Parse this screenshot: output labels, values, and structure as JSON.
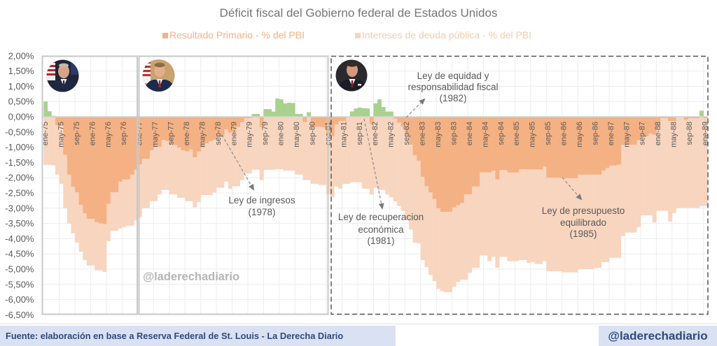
{
  "title": "Déficit fiscal del Gobierno federal de Estados Unidos",
  "legend": [
    {
      "label": "Resultado Primario - % del PBI",
      "color": "#F4B183"
    },
    {
      "label": "Intereses de deuda pública - % del PBI",
      "color": "#F6CBAE"
    }
  ],
  "chart_data": {
    "type": "bar",
    "stacked": true,
    "title": "Déficit fiscal del Gobierno federal de Estados Unidos",
    "frequency": "monthly",
    "x_start": "ene-75",
    "x_end": "ene-89",
    "x_tick_every": 4,
    "x_tick_labels": [
      "ene-75",
      "may-75",
      "sep-75",
      "ene-76",
      "may-76",
      "sep-76",
      "ene-77",
      "may-77",
      "sep-77",
      "ene-78",
      "may-78",
      "sep-78",
      "ene-79",
      "may-79",
      "sep-79",
      "ene-80",
      "may-80",
      "sep-80",
      "ene-81",
      "may-81",
      "sep-81",
      "ene-82",
      "may-82",
      "sep-82",
      "ene-83",
      "may-83",
      "sep-83",
      "ene-84",
      "may-84",
      "sep-84",
      "ene-85",
      "may-85",
      "sep-85",
      "ene-86",
      "may-86",
      "sep-86",
      "ene-87",
      "may-87",
      "sep-87",
      "ene-88",
      "may-88",
      "sep-88",
      "ene-89"
    ],
    "y_tick_labels": [
      "2,00%",
      "1,50%",
      "1,00%",
      "0,50%",
      "0,00%",
      "-0,50%",
      "-1,00%",
      "-1,50%",
      "-2,00%",
      "-2,50%",
      "-3,00%",
      "-3,50%",
      "-4,00%",
      "-4,50%",
      "-5,00%",
      "-5,50%",
      "-6,00%",
      "-6,50%"
    ],
    "ylim": [
      -6.5,
      2.0
    ],
    "y_step": 0.5,
    "xlabel": "",
    "ylabel": "",
    "grid": true,
    "legend_position": "top",
    "series": [
      {
        "name": "Resultado Primario - % del PBI",
        "color_negative": "#F4B183",
        "color_positive": "#A9D18E",
        "values": [
          0.5,
          0.18,
          0.03,
          -0.28,
          -0.28,
          -1.25,
          -1.9,
          -2.3,
          -2.48,
          -2.89,
          -3.17,
          -3.35,
          -3.35,
          -3.46,
          -3.5,
          -3.52,
          -2.86,
          -2.48,
          -2.48,
          -2.13,
          -2.06,
          -2.06,
          -1.9,
          -1.74,
          -1.56,
          -1.38,
          -1.38,
          -1.1,
          -0.99,
          -0.99,
          -0.76,
          -0.8,
          -0.92,
          -0.93,
          -1.01,
          -1.1,
          -1.14,
          -1.07,
          -1.33,
          -1.14,
          -1.0,
          -0.87,
          -0.8,
          -0.76,
          -0.62,
          -0.62,
          -0.41,
          -0.52,
          -0.55,
          -0.33,
          -0.18,
          -0.05,
          -0.05,
          0.09,
          0.09,
          -0.33,
          0.25,
          0.25,
          0.17,
          0.6,
          0.57,
          0.44,
          0.46,
          0.45,
          0.09,
          0.09,
          -0.18,
          0.15,
          -0.33,
          -0.33,
          -0.33,
          -0.35,
          -0.6,
          -0.64,
          -0.25,
          -0.14,
          -0.14,
          -0.02,
          0.17,
          0.27,
          0.3,
          0.28,
          0.27,
          -0.25,
          0.44,
          0.57,
          0.32,
          0.17,
          0.17,
          -0.06,
          -0.2,
          -0.33,
          -0.6,
          -0.92,
          -1.26,
          -1.44,
          -1.97,
          -2.28,
          -2.48,
          -2.7,
          -3.0,
          -3.12,
          -3.12,
          -3.12,
          -2.98,
          -2.9,
          -2.83,
          -2.55,
          -2.55,
          -2.29,
          -2.29,
          -1.83,
          -1.83,
          -1.83,
          -1.77,
          -2.06,
          -1.75,
          -1.75,
          -1.83,
          -1.83,
          -1.83,
          -1.72,
          -1.72,
          -1.73,
          -1.73,
          -1.73,
          -1.73,
          -1.63,
          -2.0,
          -2.0,
          -2.0,
          -2.0,
          -2.02,
          -2.02,
          -2.02,
          -2.02,
          -1.9,
          -1.9,
          -1.9,
          -1.9,
          -1.9,
          -1.9,
          -1.77,
          -1.68,
          -1.6,
          -1.6,
          -1.57,
          -0.92,
          -0.92,
          -0.92,
          -0.92,
          -0.77,
          -0.64,
          -0.64,
          -0.55,
          -0.6,
          -0.33,
          -0.05,
          -0.05,
          -0.14,
          -0.14,
          0.0,
          0.0,
          -0.1,
          -0.05,
          -0.05,
          -0.05,
          0.2,
          -0.05
        ]
      },
      {
        "name": "Intereses de deuda pública - % del PBI",
        "color": "#F8D5BF",
        "values": [
          -1.58,
          -1.58,
          -1.6,
          -1.62,
          -1.92,
          -1.75,
          -1.6,
          -1.53,
          -1.65,
          -1.54,
          -1.53,
          -1.53,
          -1.53,
          -1.58,
          -1.54,
          -1.57,
          -1.22,
          -1.26,
          -1.26,
          -1.54,
          -1.56,
          -1.52,
          -1.68,
          -1.66,
          -1.74,
          -1.62,
          -1.62,
          -1.67,
          -1.78,
          -1.56,
          -1.64,
          -1.6,
          -1.63,
          -1.62,
          -1.65,
          -1.56,
          -1.63,
          -1.7,
          -1.64,
          -1.66,
          -1.57,
          -1.7,
          -1.77,
          -1.72,
          -1.71,
          -1.71,
          -1.72,
          -1.85,
          -1.73,
          -1.95,
          -1.9,
          -1.81,
          -1.81,
          -1.74,
          -1.74,
          -1.75,
          -1.74,
          -1.74,
          -1.74,
          -1.72,
          -1.72,
          -1.77,
          -1.77,
          -1.77,
          -1.9,
          -1.9,
          -1.9,
          -2.08,
          -1.87,
          -1.87,
          -1.91,
          -1.89,
          -1.95,
          -2.0,
          -2.04,
          -2.22,
          -2.06,
          -2.18,
          -2.15,
          -2.15,
          -2.15,
          -2.36,
          -2.36,
          -2.3,
          -2.33,
          -2.4,
          -2.4,
          -2.55,
          -2.64,
          -2.72,
          -2.73,
          -2.76,
          -2.76,
          -2.78,
          -2.87,
          -2.71,
          -2.73,
          -2.66,
          -2.71,
          -2.69,
          -2.65,
          -2.61,
          -2.64,
          -2.64,
          -2.6,
          -2.52,
          -2.52,
          -2.8,
          -2.57,
          -2.67,
          -2.67,
          -2.72,
          -2.72,
          -2.91,
          -2.83,
          -2.89,
          -2.85,
          -2.85,
          -2.91,
          -2.91,
          -2.91,
          -2.98,
          -2.98,
          -3.07,
          -3.04,
          -3.1,
          -3.1,
          -3.11,
          -3.07,
          -3.07,
          -3.07,
          -3.07,
          -3.09,
          -3.09,
          -3.09,
          -3.09,
          -3.1,
          -3.1,
          -3.1,
          -3.1,
          -3.06,
          -3.06,
          -3.0,
          -3.09,
          -3.03,
          -3.03,
          -3.06,
          -3.0,
          -2.88,
          -2.88,
          -2.88,
          -2.85,
          -2.6,
          -2.6,
          -2.69,
          -2.87,
          -2.76,
          -3.04,
          -3.04,
          -3.3,
          -3.02,
          -2.99,
          -2.99,
          -2.89,
          -2.94,
          -2.94,
          -2.94,
          -2.93,
          -2.88
        ]
      }
    ],
    "annotations": [
      {
        "lines": [
          "Ley de ingresos",
          "(1978)"
        ]
      },
      {
        "lines": [
          "Ley de recuperacion",
          "económica",
          "(1981)"
        ]
      },
      {
        "lines": [
          "Ley de equidad y",
          "responsabilidad fiscal",
          "(1982)"
        ]
      },
      {
        "lines": [
          "Ley de presupuesto",
          "equilibrado",
          "(1985)"
        ]
      }
    ]
  },
  "watermark": "@laderechadiario",
  "footer": {
    "source": "Fuente: elaboración en base a Reserva Federal de St. Louis - La Derecha Diario",
    "handle": "@laderechadiario"
  }
}
